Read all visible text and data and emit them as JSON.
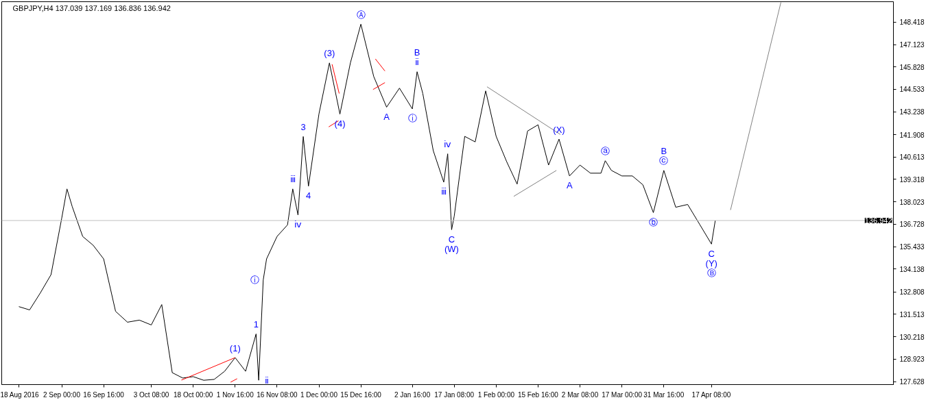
{
  "chart_data": {
    "type": "line",
    "title": "GBPJPY,H4  137.039 137.169 136.836 136.942",
    "xlim": [
      "2016-08-12T00:00",
      "2017-06-20T00:00"
    ],
    "ylim": [
      127.45,
      149.6
    ],
    "xticks": [
      {
        "value": "2016-08-18T00:00",
        "label": "18 Aug 2016"
      },
      {
        "value": "2016-09-02T00:00",
        "label": "2 Sep 00:00"
      },
      {
        "value": "2016-09-16T16:00",
        "label": "16 Sep 16:00"
      },
      {
        "value": "2016-10-03T08:00",
        "label": "3 Oct 08:00"
      },
      {
        "value": "2016-10-18T00:00",
        "label": "18 Oct 00:00"
      },
      {
        "value": "2016-11-01T16:00",
        "label": "1 Nov 16:00"
      },
      {
        "value": "2016-11-16T08:00",
        "label": "16 Nov 08:00"
      },
      {
        "value": "2016-12-01T00:00",
        "label": "1 Dec 00:00"
      },
      {
        "value": "2016-12-15T16:00",
        "label": "15 Dec 16:00"
      },
      {
        "value": "2017-01-02T16:00",
        "label": "2 Jan 16:00"
      },
      {
        "value": "2017-01-17T08:00",
        "label": "17 Jan 08:00"
      },
      {
        "value": "2017-02-01T00:00",
        "label": "1 Feb 00:00"
      },
      {
        "value": "2017-02-15T16:00",
        "label": "15 Feb 16:00"
      },
      {
        "value": "2017-03-02T08:00",
        "label": "2 Mar 08:00"
      },
      {
        "value": "2017-03-17T00:00",
        "label": "17 Mar 00:00"
      },
      {
        "value": "2017-03-31T16:00",
        "label": "31 Mar 16:00"
      },
      {
        "value": "2017-04-17T08:00",
        "label": "17 Apr 08:00"
      }
    ],
    "yticks": [
      127.628,
      128.923,
      130.218,
      131.513,
      132.808,
      134.138,
      135.433,
      136.728,
      138.023,
      139.318,
      140.613,
      141.908,
      143.238,
      144.533,
      145.828,
      147.123,
      148.418
    ],
    "series": [
      {
        "color": "#000000",
        "x": [
          "2016-08-18T00:00",
          "2016-08-21T18:00",
          "2016-08-25T12:00",
          "2016-08-29T06:00",
          "2016-09-02T00:00",
          "2016-09-03T20:00",
          "2016-09-05T16:00",
          "2016-09-09T08:00",
          "2016-09-13T00:00",
          "2016-09-16T16:00",
          "2016-09-20T20:00",
          "2016-09-25T00:00",
          "2016-09-29T04:00",
          "2016-10-03T08:00",
          "2016-10-07T00:00",
          "2016-10-10T16:00",
          "2016-10-14T08:00",
          "2016-10-18T00:00",
          "2016-10-21T16:00",
          "2016-10-25T08:00",
          "2016-10-29T00:00",
          "2016-11-01T16:00",
          "2016-11-05T08:00",
          "2016-11-09T00:00",
          "2016-11-09T22:00",
          "2016-11-11T12:00",
          "2016-11-12T16:00",
          "2016-11-16T08:00",
          "2016-11-20T00:00",
          "2016-11-21T20:00",
          "2016-11-23T16:00",
          "2016-11-25T12:00",
          "2016-11-27T08:00",
          "2016-12-01T00:00",
          "2016-12-04T16:00",
          "2016-12-08T08:00",
          "2016-12-12T00:00",
          "2016-12-15T16:00",
          "2016-12-20T04:00",
          "2016-12-24T16:00",
          "2016-12-29T04:00",
          "2017-01-02T16:00",
          "2017-01-04T08:00",
          "2017-01-06T08:00",
          "2017-01-10T00:00",
          "2017-01-13T16:00",
          "2017-01-15T01:00",
          "2017-01-16T10:00",
          "2017-01-17T08:00",
          "2017-01-21T00:00",
          "2017-01-24T16:00",
          "2017-01-28T08:00",
          "2017-02-01T00:00",
          "2017-02-04T16:00",
          "2017-02-08T08:00",
          "2017-02-12T00:00",
          "2017-02-15T16:00",
          "2017-02-19T08:00",
          "2017-02-23T00:00",
          "2017-02-26T16:00",
          "2017-03-02T08:00",
          "2017-03-06T00:00",
          "2017-03-09T16:00",
          "2017-03-11T04:00",
          "2017-03-13T08:00",
          "2017-03-17T00:00",
          "2017-03-20T16:00",
          "2017-03-24T08:00",
          "2017-03-28T00:00",
          "2017-03-31T16:00",
          "2017-04-04T20:00",
          "2017-04-09T00:00",
          "2017-04-13T04:00",
          "2017-04-17T08:00",
          "2017-04-18T16:00"
        ],
        "values": [
          131.96,
          131.77,
          132.75,
          133.81,
          137.08,
          138.77,
          137.75,
          136.02,
          135.51,
          134.72,
          131.69,
          131.06,
          131.18,
          130.9,
          132.08,
          128.14,
          127.83,
          127.91,
          127.7,
          127.75,
          128.22,
          129.01,
          128.22,
          130.38,
          127.7,
          133.5,
          134.72,
          136.02,
          136.69,
          138.77,
          137.26,
          141.8,
          138.93,
          143.11,
          146.06,
          143.1,
          146.06,
          148.3,
          145.27,
          143.5,
          144.6,
          143.4,
          145.55,
          144.29,
          140.98,
          139.16,
          140.8,
          136.41,
          137.2,
          141.81,
          141.49,
          144.44,
          141.81,
          140.35,
          139.05,
          142.12,
          142.48,
          140.15,
          141.65,
          139.52,
          140.15,
          139.68,
          139.68,
          140.4,
          139.84,
          139.52,
          139.52,
          139.01,
          137.4,
          139.84,
          137.71,
          137.87,
          136.73,
          135.58,
          136.942
        ]
      },
      {
        "color": "#808080",
        "x": [
          "2017-01-28T19:00",
          "2017-02-23T11:00"
        ],
        "values": [
          144.68,
          141.92
        ]
      },
      {
        "color": "#808080",
        "x": [
          "2017-02-07T04:00",
          "2017-02-22T02:00"
        ],
        "values": [
          138.34,
          139.84
        ]
      },
      {
        "color": "#ff0000",
        "x": [
          "2016-12-05T14:00",
          "2016-12-08T02:00"
        ],
        "values": [
          145.98,
          144.29
        ]
      },
      {
        "color": "#ff0000",
        "x": [
          "2016-12-04T10:00",
          "2016-12-07T20:00"
        ],
        "values": [
          142.36,
          142.71
        ]
      },
      {
        "color": "#ff0000",
        "x": [
          "2016-12-20T18:00",
          "2016-12-24T02:00"
        ],
        "values": [
          146.29,
          145.59
        ]
      },
      {
        "color": "#ff0000",
        "x": [
          "2016-12-19T22:00",
          "2016-12-24T02:00"
        ],
        "values": [
          144.52,
          144.92
        ]
      },
      {
        "color": "#ff0000",
        "x": [
          "2016-10-13T21:00",
          "2016-11-01T16:00"
        ],
        "values": [
          127.71,
          129.01
        ]
      },
      {
        "color": "#ff0000",
        "x": [
          "2016-10-31T02:00",
          "2016-11-02T09:00"
        ],
        "values": [
          127.59,
          127.79
        ]
      },
      {
        "color": "#808080",
        "x": [
          "2017-04-24T00:00",
          "2017-05-11T15:00"
        ],
        "values": [
          137.55,
          149.56
        ]
      }
    ],
    "ref_lines": [
      {
        "axis": "y",
        "value": 136.942,
        "label": "136.942",
        "color": "#c0c0c0"
      }
    ],
    "annotations": [
      {
        "text": "Ⓐ",
        "x": "2016-12-15T16:00",
        "y": 148.3
      },
      {
        "text": "(3)",
        "x": "2016-12-04T16:00",
        "y": 146.06
      },
      {
        "text": "(4)",
        "x": "2016-12-08T08:00",
        "y": 143.1
      },
      {
        "text": "3",
        "x": "2016-11-25T12:00",
        "y": 141.8
      },
      {
        "text": "ⅲ",
        "x": "2016-11-21T20:00",
        "y": 138.77
      },
      {
        "text": "4",
        "x": "2016-11-27T08:00",
        "y": 138.93
      },
      {
        "text": "ⅳ",
        "x": "2016-11-23T16:00",
        "y": 137.26
      },
      {
        "text": "ⓘ",
        "x": "2016-11-11T12:00",
        "y": 133.5
      },
      {
        "text": "1",
        "x": "2016-11-09T00:00",
        "y": 130.38
      },
      {
        "text": "(1)",
        "x": "2016-11-01T16:00",
        "y": 129.01
      },
      {
        "text": "ⅱ",
        "x": "2016-11-09T22:00",
        "y": 127.7
      },
      {
        "text": "ⅱ",
        "x": "2017-01-04T08:00",
        "y": 145.55
      },
      {
        "text": "B",
        "x": "2017-01-04T08:00",
        "y": 145.55
      },
      {
        "text": "A",
        "x": "2016-12-24T16:00",
        "y": 143.5
      },
      {
        "text": "ⓘ",
        "x": "2017-01-02T16:00",
        "y": 143.4
      },
      {
        "text": "ⅳ",
        "x": "2017-01-15T01:00",
        "y": 140.8
      },
      {
        "text": "ⅲ",
        "x": "2017-01-13T16:00",
        "y": 139.16
      },
      {
        "text": "C",
        "x": "2017-01-16T10:00",
        "y": 136.41
      },
      {
        "text": "(W)",
        "x": "2017-01-16T10:00",
        "y": 136.41
      },
      {
        "text": "(X)",
        "x": "2017-02-23T00:00",
        "y": 141.65
      },
      {
        "text": "A",
        "x": "2017-02-26T16:00",
        "y": 139.52
      },
      {
        "text": "ⓐ",
        "x": "2017-03-11T04:00",
        "y": 140.4
      },
      {
        "text": "ⓒ",
        "x": "2017-03-31T16:00",
        "y": 139.84
      },
      {
        "text": "B",
        "x": "2017-03-31T16:00",
        "y": 139.84
      },
      {
        "text": "ⓑ",
        "x": "2017-03-28T00:00",
        "y": 137.4
      },
      {
        "text": "C",
        "x": "2017-04-17T08:00",
        "y": 135.58
      },
      {
        "text": "(Y)",
        "x": "2017-04-17T08:00",
        "y": 135.58
      },
      {
        "text": "Ⓑ",
        "x": "2017-04-17T08:00",
        "y": 135.58
      }
    ]
  }
}
